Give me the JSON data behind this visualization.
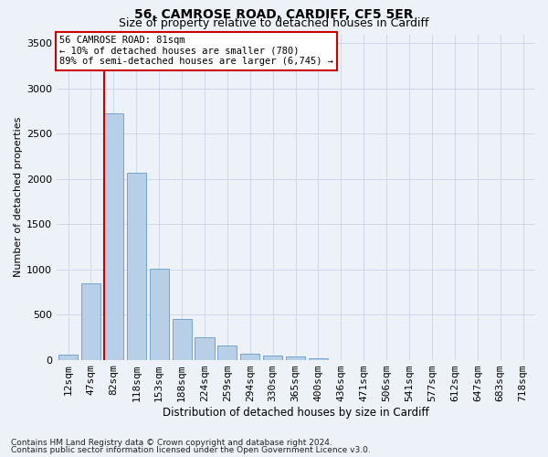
{
  "title1": "56, CAMROSE ROAD, CARDIFF, CF5 5ER",
  "title2": "Size of property relative to detached houses in Cardiff",
  "xlabel": "Distribution of detached houses by size in Cardiff",
  "ylabel": "Number of detached properties",
  "categories": [
    "12sqm",
    "47sqm",
    "82sqm",
    "118sqm",
    "153sqm",
    "188sqm",
    "224sqm",
    "259sqm",
    "294sqm",
    "330sqm",
    "365sqm",
    "400sqm",
    "436sqm",
    "471sqm",
    "506sqm",
    "541sqm",
    "577sqm",
    "612sqm",
    "647sqm",
    "683sqm",
    "718sqm"
  ],
  "values": [
    60,
    850,
    2730,
    2070,
    1010,
    450,
    250,
    160,
    70,
    45,
    35,
    20,
    0,
    0,
    0,
    0,
    0,
    0,
    0,
    0,
    0
  ],
  "bar_color": "#b8cfe8",
  "bar_edge_color": "#6699cc",
  "vline_color": "#cc0000",
  "annotation_text": "56 CAMROSE ROAD: 81sqm\n← 10% of detached houses are smaller (780)\n89% of semi-detached houses are larger (6,745) →",
  "annotation_box_facecolor": "#ffffff",
  "annotation_box_edgecolor": "#cc0000",
  "grid_color": "#c8d4e4",
  "bg_color": "#edf1f8",
  "ylim": [
    0,
    3600
  ],
  "yticks": [
    0,
    500,
    1000,
    1500,
    2000,
    2500,
    3000,
    3500
  ],
  "footer1": "Contains HM Land Registry data © Crown copyright and database right 2024.",
  "footer2": "Contains public sector information licensed under the Open Government Licence v3.0."
}
